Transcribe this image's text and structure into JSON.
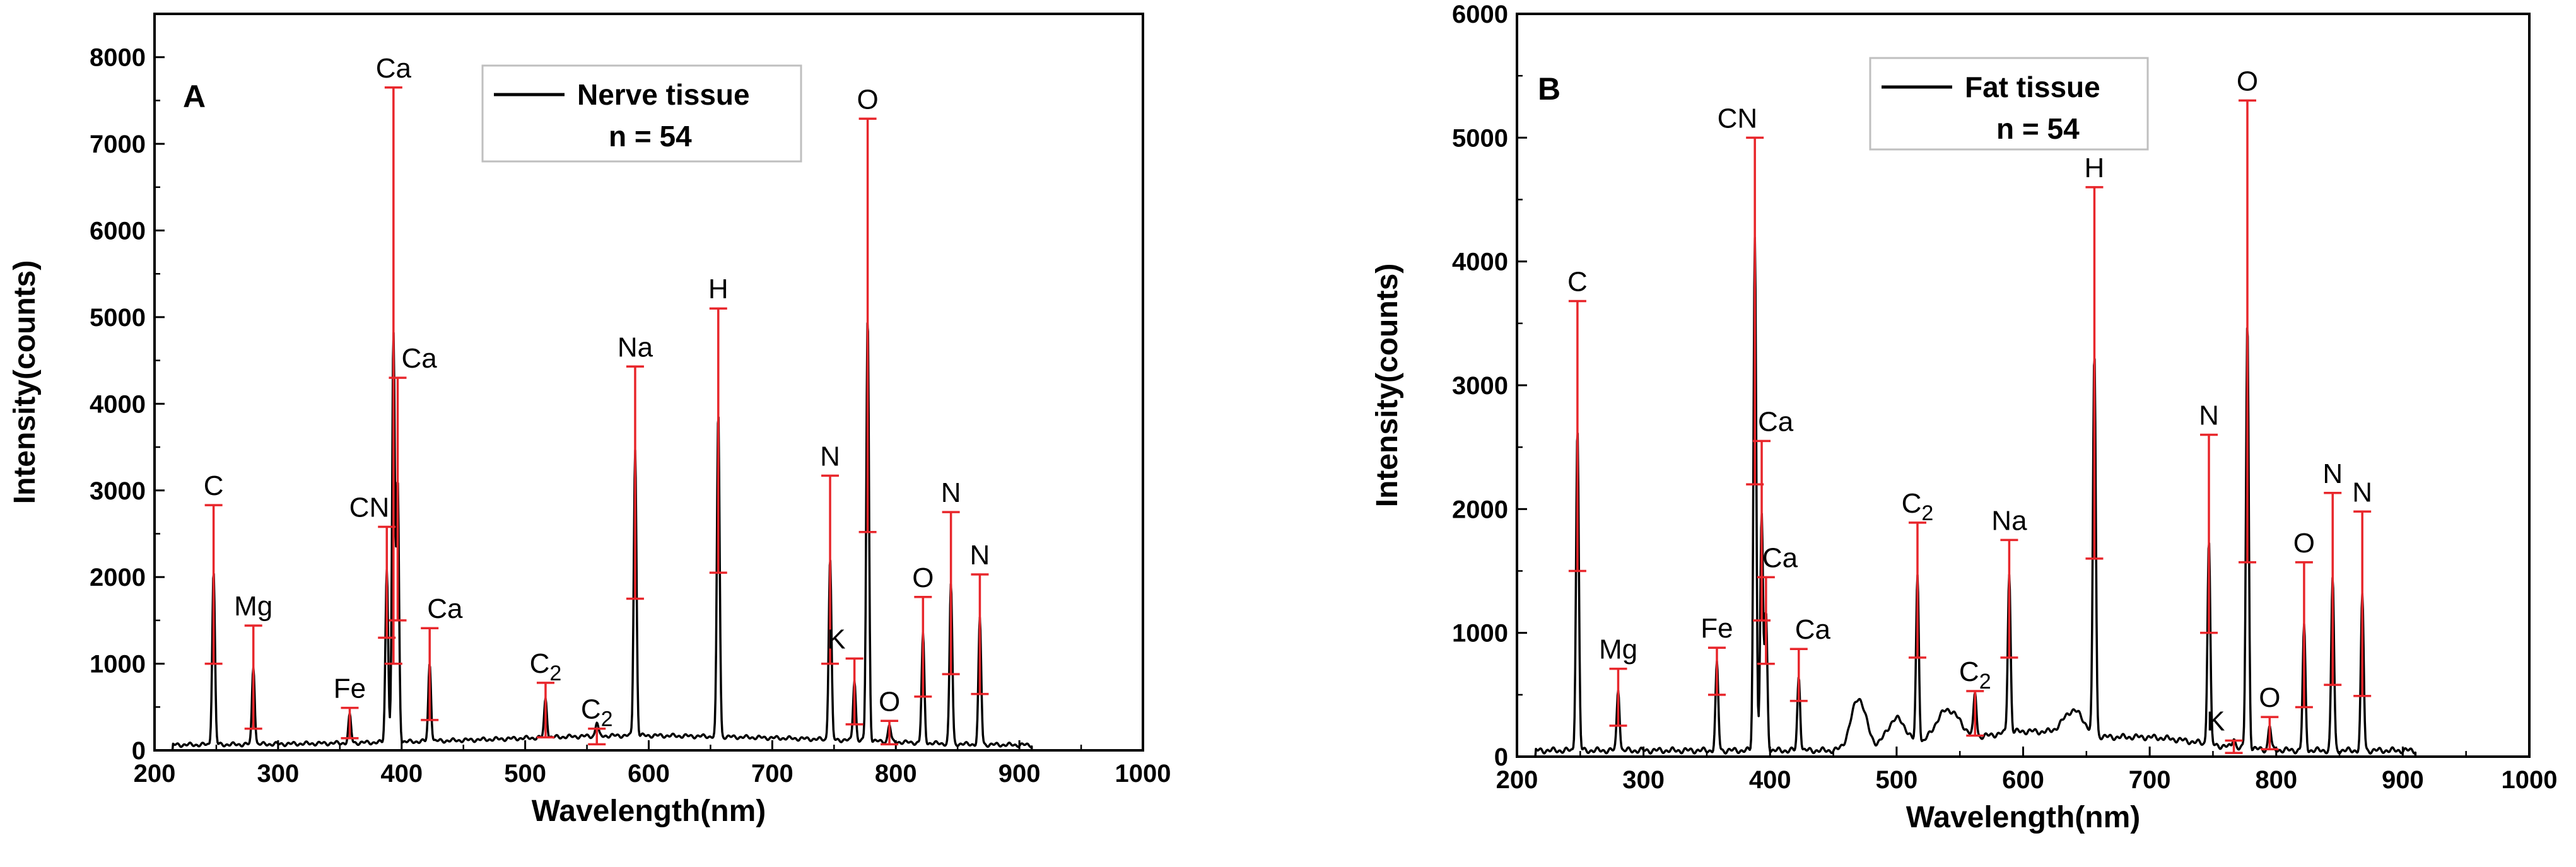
{
  "chart_data": [
    {
      "type": "line",
      "panel": "A",
      "xlabel": "Wavelength(nm)",
      "ylabel": "Intensity(counts)",
      "xlim": [
        200,
        1000
      ],
      "ylim": [
        0,
        8500
      ],
      "xticks": [
        200,
        300,
        400,
        500,
        600,
        700,
        800,
        900,
        1000
      ],
      "yticks": [
        0,
        1000,
        2000,
        3000,
        4000,
        5000,
        6000,
        7000,
        8000
      ],
      "legend": {
        "placement": "top-center",
        "series": "Nerve tissue",
        "note": "n = 54"
      },
      "line_color": "#000000",
      "errorbar_color": "#e8262b",
      "baseline": 60,
      "bumps": [
        [
          480,
          40,
          120
        ],
        [
          560,
          45,
          80
        ],
        [
          610,
          40,
          60
        ],
        [
          690,
          30,
          50
        ],
        [
          760,
          40,
          60
        ]
      ],
      "peaks": [
        {
          "label": "C",
          "sub": "",
          "x": 247.8,
          "y": 2000,
          "err_low": 1000,
          "err_high": 2830
        },
        {
          "label": "Mg",
          "sub": "",
          "x": 280,
          "y": 900,
          "err_low": 250,
          "err_high": 1440
        },
        {
          "label": "Fe",
          "sub": "",
          "x": 358,
          "y": 320,
          "err_low": 140,
          "err_high": 490
        },
        {
          "label": "CN",
          "sub": "",
          "x": 388,
          "y": 2000,
          "err_low": 1300,
          "err_high": 2580
        },
        {
          "label": "Ca",
          "sub": "",
          "x": 393.4,
          "y": 4700,
          "err_low": 1000,
          "err_high": 7650
        },
        {
          "label": "Ca",
          "sub": "",
          "x": 396.8,
          "y": 3000,
          "err_low": 1500,
          "err_high": 4300
        },
        {
          "label": "Ca",
          "sub": "",
          "x": 422.7,
          "y": 900,
          "err_low": 350,
          "err_high": 1410
        },
        {
          "label": "C",
          "sub": "2",
          "x": 516.5,
          "y": 450,
          "err_low": 150,
          "err_high": 780
        },
        {
          "label": "C",
          "sub": "2",
          "x": 558,
          "y": 160,
          "err_low": 70,
          "err_high": 250
        },
        {
          "label": "Na",
          "sub": "",
          "x": 589,
          "y": 3300,
          "err_low": 1750,
          "err_high": 4430
        },
        {
          "label": "H",
          "sub": "",
          "x": 656.3,
          "y": 3750,
          "err_low": 2050,
          "err_high": 5100
        },
        {
          "label": "N",
          "sub": "",
          "x": 746.8,
          "y": 2100,
          "err_low": 1000,
          "err_high": 3170
        },
        {
          "label": "K",
          "sub": "",
          "x": 766.5,
          "y": 700,
          "err_low": 300,
          "err_high": 1060
        },
        {
          "label": "O",
          "sub": "",
          "x": 777.2,
          "y": 4900,
          "err_low": 2520,
          "err_high": 7290
        },
        {
          "label": "O",
          "sub": "",
          "x": 794.8,
          "y": 200,
          "err_low": 70,
          "err_high": 340
        },
        {
          "label": "O",
          "sub": "",
          "x": 822,
          "y": 1250,
          "err_low": 620,
          "err_high": 1770
        },
        {
          "label": "N",
          "sub": "",
          "x": 844.6,
          "y": 1850,
          "err_low": 880,
          "err_high": 2750
        },
        {
          "label": "N",
          "sub": "",
          "x": 868,
          "y": 1450,
          "err_low": 650,
          "err_high": 2030
        }
      ]
    },
    {
      "type": "line",
      "panel": "B",
      "xlabel": "Wavelength(nm)",
      "ylabel": "Intensity(counts)",
      "xlim": [
        200,
        1000
      ],
      "ylim": [
        0,
        6000
      ],
      "xticks": [
        200,
        300,
        400,
        500,
        600,
        700,
        800,
        900,
        1000
      ],
      "yticks": [
        0,
        1000,
        2000,
        3000,
        4000,
        5000,
        6000
      ],
      "legend": {
        "placement": "top-center",
        "series": "Fat tissue",
        "note": "n = 54"
      },
      "line_color": "#000000",
      "errorbar_color": "#e8262b",
      "baseline": 50,
      "bumps": [
        [
          470,
          420,
          6
        ],
        [
          500,
          250,
          8
        ],
        [
          540,
          280,
          10
        ],
        [
          600,
          150,
          40
        ],
        [
          640,
          200,
          8
        ],
        [
          700,
          100,
          40
        ]
      ],
      "peaks": [
        {
          "label": "C",
          "sub": "",
          "x": 247.8,
          "y": 2600,
          "err_low": 1500,
          "err_high": 3680
        },
        {
          "label": "Mg",
          "sub": "",
          "x": 280,
          "y": 500,
          "err_low": 250,
          "err_high": 710
        },
        {
          "label": "Fe",
          "sub": "",
          "x": 358,
          "y": 700,
          "err_low": 500,
          "err_high": 880
        },
        {
          "label": "CN",
          "sub": "",
          "x": 388,
          "y": 4150,
          "err_low": 2200,
          "err_high": 5000
        },
        {
          "label": "Ca",
          "sub": "",
          "x": 393.4,
          "y": 1900,
          "err_low": 1100,
          "err_high": 2550
        },
        {
          "label": "Ca",
          "sub": "",
          "x": 396.8,
          "y": 1100,
          "err_low": 750,
          "err_high": 1450
        },
        {
          "label": "Ca",
          "sub": "",
          "x": 422.7,
          "y": 600,
          "err_low": 450,
          "err_high": 870
        },
        {
          "label": "C",
          "sub": "2",
          "x": 516.5,
          "y": 1350,
          "err_low": 800,
          "err_high": 1890
        },
        {
          "label": "C",
          "sub": "2",
          "x": 562,
          "y": 350,
          "err_low": 170,
          "err_high": 530
        },
        {
          "label": "Na",
          "sub": "",
          "x": 589,
          "y": 1280,
          "err_low": 800,
          "err_high": 1750
        },
        {
          "label": "H",
          "sub": "",
          "x": 656.3,
          "y": 3080,
          "err_low": 1600,
          "err_high": 4600
        },
        {
          "label": "N",
          "sub": "",
          "x": 746.8,
          "y": 1650,
          "err_low": 1000,
          "err_high": 2600
        },
        {
          "label": "K",
          "sub": "",
          "x": 766.5,
          "y": 80,
          "err_low": 30,
          "err_high": 130
        },
        {
          "label": "O",
          "sub": "",
          "x": 777.2,
          "y": 3450,
          "err_low": 1570,
          "err_high": 5300
        },
        {
          "label": "O",
          "sub": "",
          "x": 794.8,
          "y": 200,
          "err_low": 60,
          "err_high": 320
        },
        {
          "label": "O",
          "sub": "",
          "x": 822,
          "y": 1000,
          "err_low": 400,
          "err_high": 1570
        },
        {
          "label": "N",
          "sub": "",
          "x": 844.6,
          "y": 1400,
          "err_low": 580,
          "err_high": 2130
        },
        {
          "label": "N",
          "sub": "",
          "x": 868,
          "y": 1250,
          "err_low": 490,
          "err_high": 1980
        }
      ]
    }
  ]
}
